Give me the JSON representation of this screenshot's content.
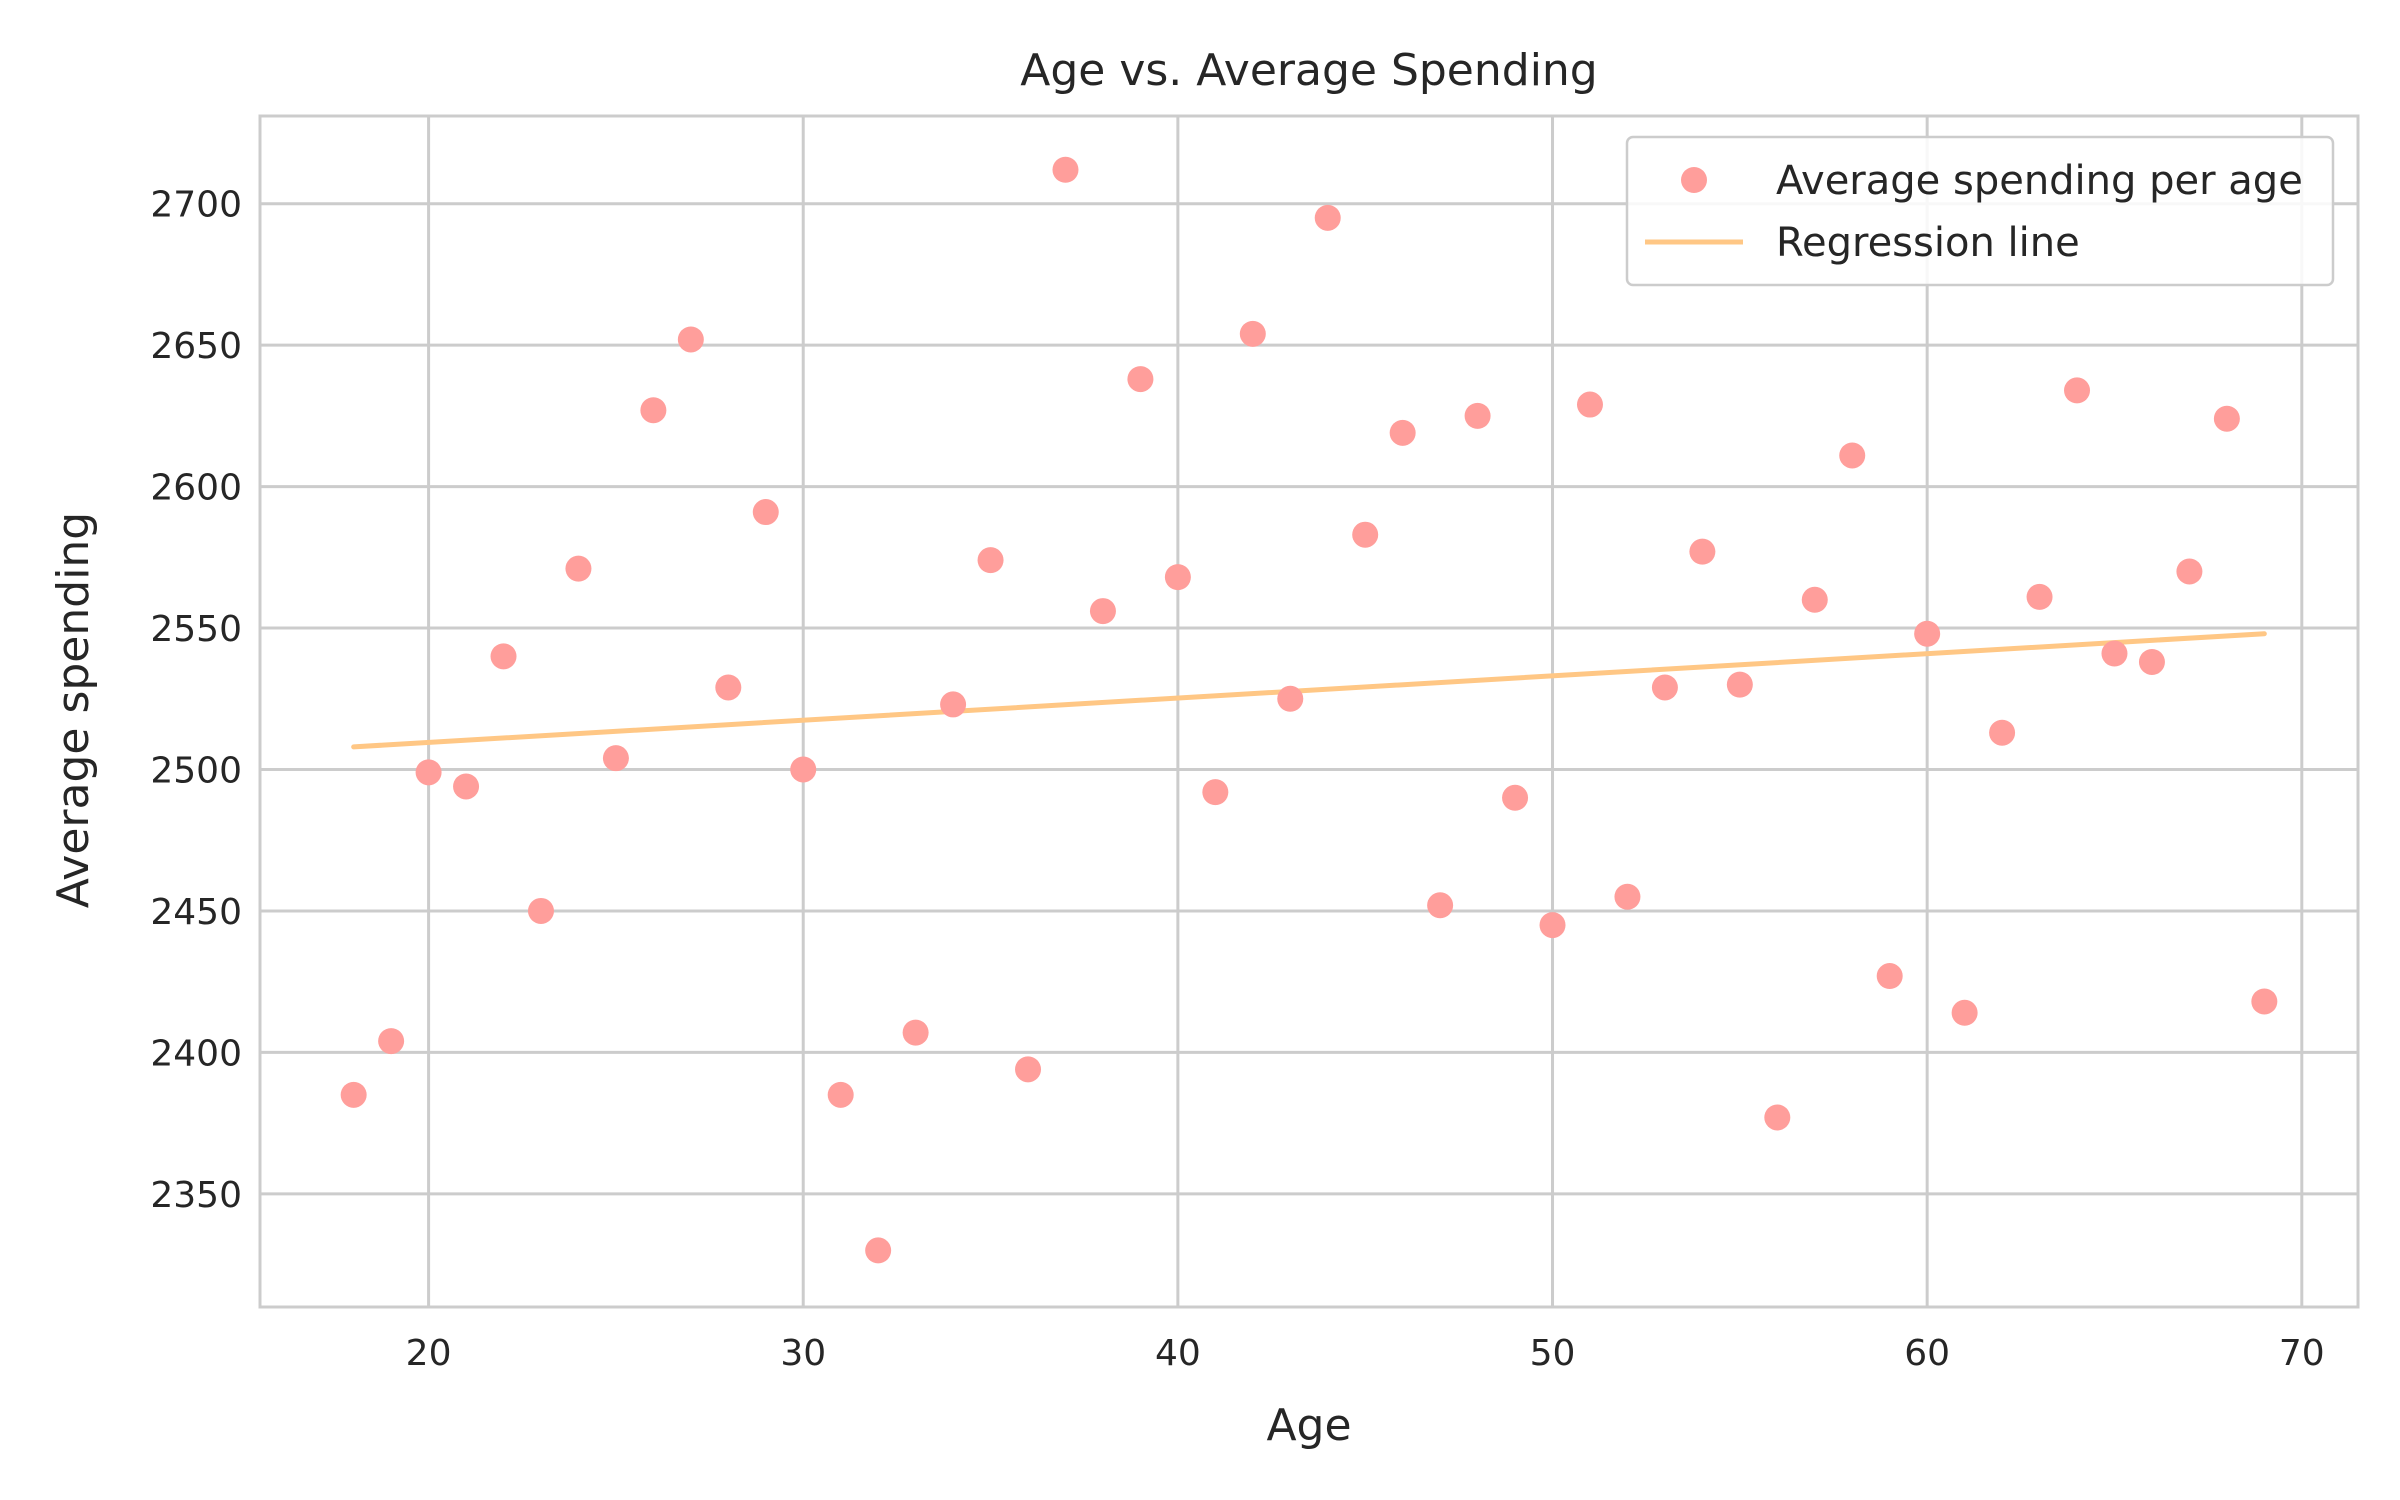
{
  "chart_data": {
    "type": "scatter",
    "title": "Age vs. Average Spending",
    "xlabel": "Age",
    "ylabel": "Average spending",
    "xlim": [
      15.5,
      71.5
    ],
    "ylim": [
      2310,
      2731
    ],
    "xticks": [
      20,
      30,
      40,
      50,
      60,
      70
    ],
    "yticks": [
      2350,
      2400,
      2450,
      2500,
      2550,
      2600,
      2650,
      2700
    ],
    "grid": true,
    "legend_position": "top-right",
    "colors": {
      "points": "#ff9e9b",
      "line": "#ffc785"
    },
    "series": [
      {
        "type": "scatter",
        "name": "Average spending per age",
        "x": [
          18,
          19,
          20,
          21,
          22,
          23,
          24,
          25,
          26,
          27,
          28,
          29,
          30,
          31,
          32,
          33,
          34,
          35,
          36,
          37,
          38,
          39,
          40,
          41,
          42,
          43,
          44,
          45,
          46,
          47,
          48,
          49,
          50,
          51,
          52,
          53,
          54,
          55,
          56,
          57,
          58,
          59,
          60,
          61,
          62,
          63,
          64,
          65,
          66,
          67,
          68,
          69
        ],
        "y": [
          2385,
          2404,
          2499,
          2494,
          2540,
          2450,
          2571,
          2504,
          2627,
          2652,
          2529,
          2591,
          2500,
          2385,
          2330,
          2407,
          2523,
          2574,
          2394,
          2712,
          2556,
          2638,
          2568,
          2492,
          2654,
          2525,
          2695,
          2583,
          2619,
          2452,
          2625,
          2490,
          2445,
          2629,
          2455,
          2529,
          2577,
          2530,
          2377,
          2560,
          2611,
          2427,
          2548,
          2414,
          2513,
          2561,
          2634,
          2541,
          2538,
          2570,
          2624,
          2418
        ]
      },
      {
        "type": "line",
        "name": "Regression line",
        "x": [
          18,
          69
        ],
        "y": [
          2508,
          2548
        ]
      }
    ]
  }
}
